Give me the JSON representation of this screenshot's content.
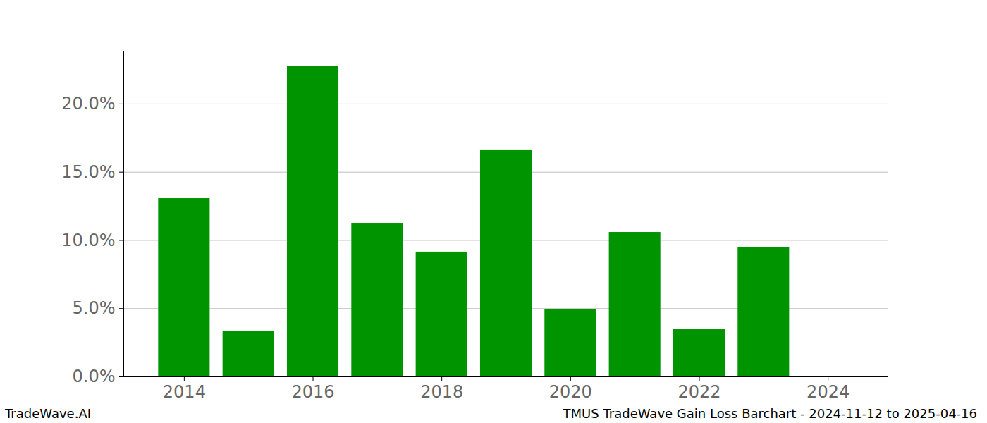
{
  "chart_data": {
    "type": "bar",
    "source": "TradeWave.AI",
    "caption": "TMUS TradeWave Gain Loss Barchart - 2024-11-12 to 2025-04-16",
    "categories": [
      2014,
      2015,
      2016,
      2017,
      2018,
      2019,
      2020,
      2021,
      2022,
      2023,
      2024
    ],
    "values": [
      13.07,
      3.36,
      22.74,
      11.21,
      9.15,
      16.59,
      4.91,
      10.59,
      3.46,
      9.46,
      0
    ],
    "color": "#009400",
    "xlim": [
      2013.06,
      2024.94
    ],
    "xticks": [
      2014,
      2016,
      2018,
      2020,
      2022,
      2024
    ],
    "ylim": [
      0,
      23.87
    ],
    "yticks": [
      {
        "value": 0,
        "label": "0.0%"
      },
      {
        "value": 5,
        "label": "5.0%"
      },
      {
        "value": 10,
        "label": "10.0%"
      },
      {
        "value": 15,
        "label": "15.0%"
      },
      {
        "value": 20,
        "label": "20.0%"
      }
    ],
    "grid": true
  }
}
